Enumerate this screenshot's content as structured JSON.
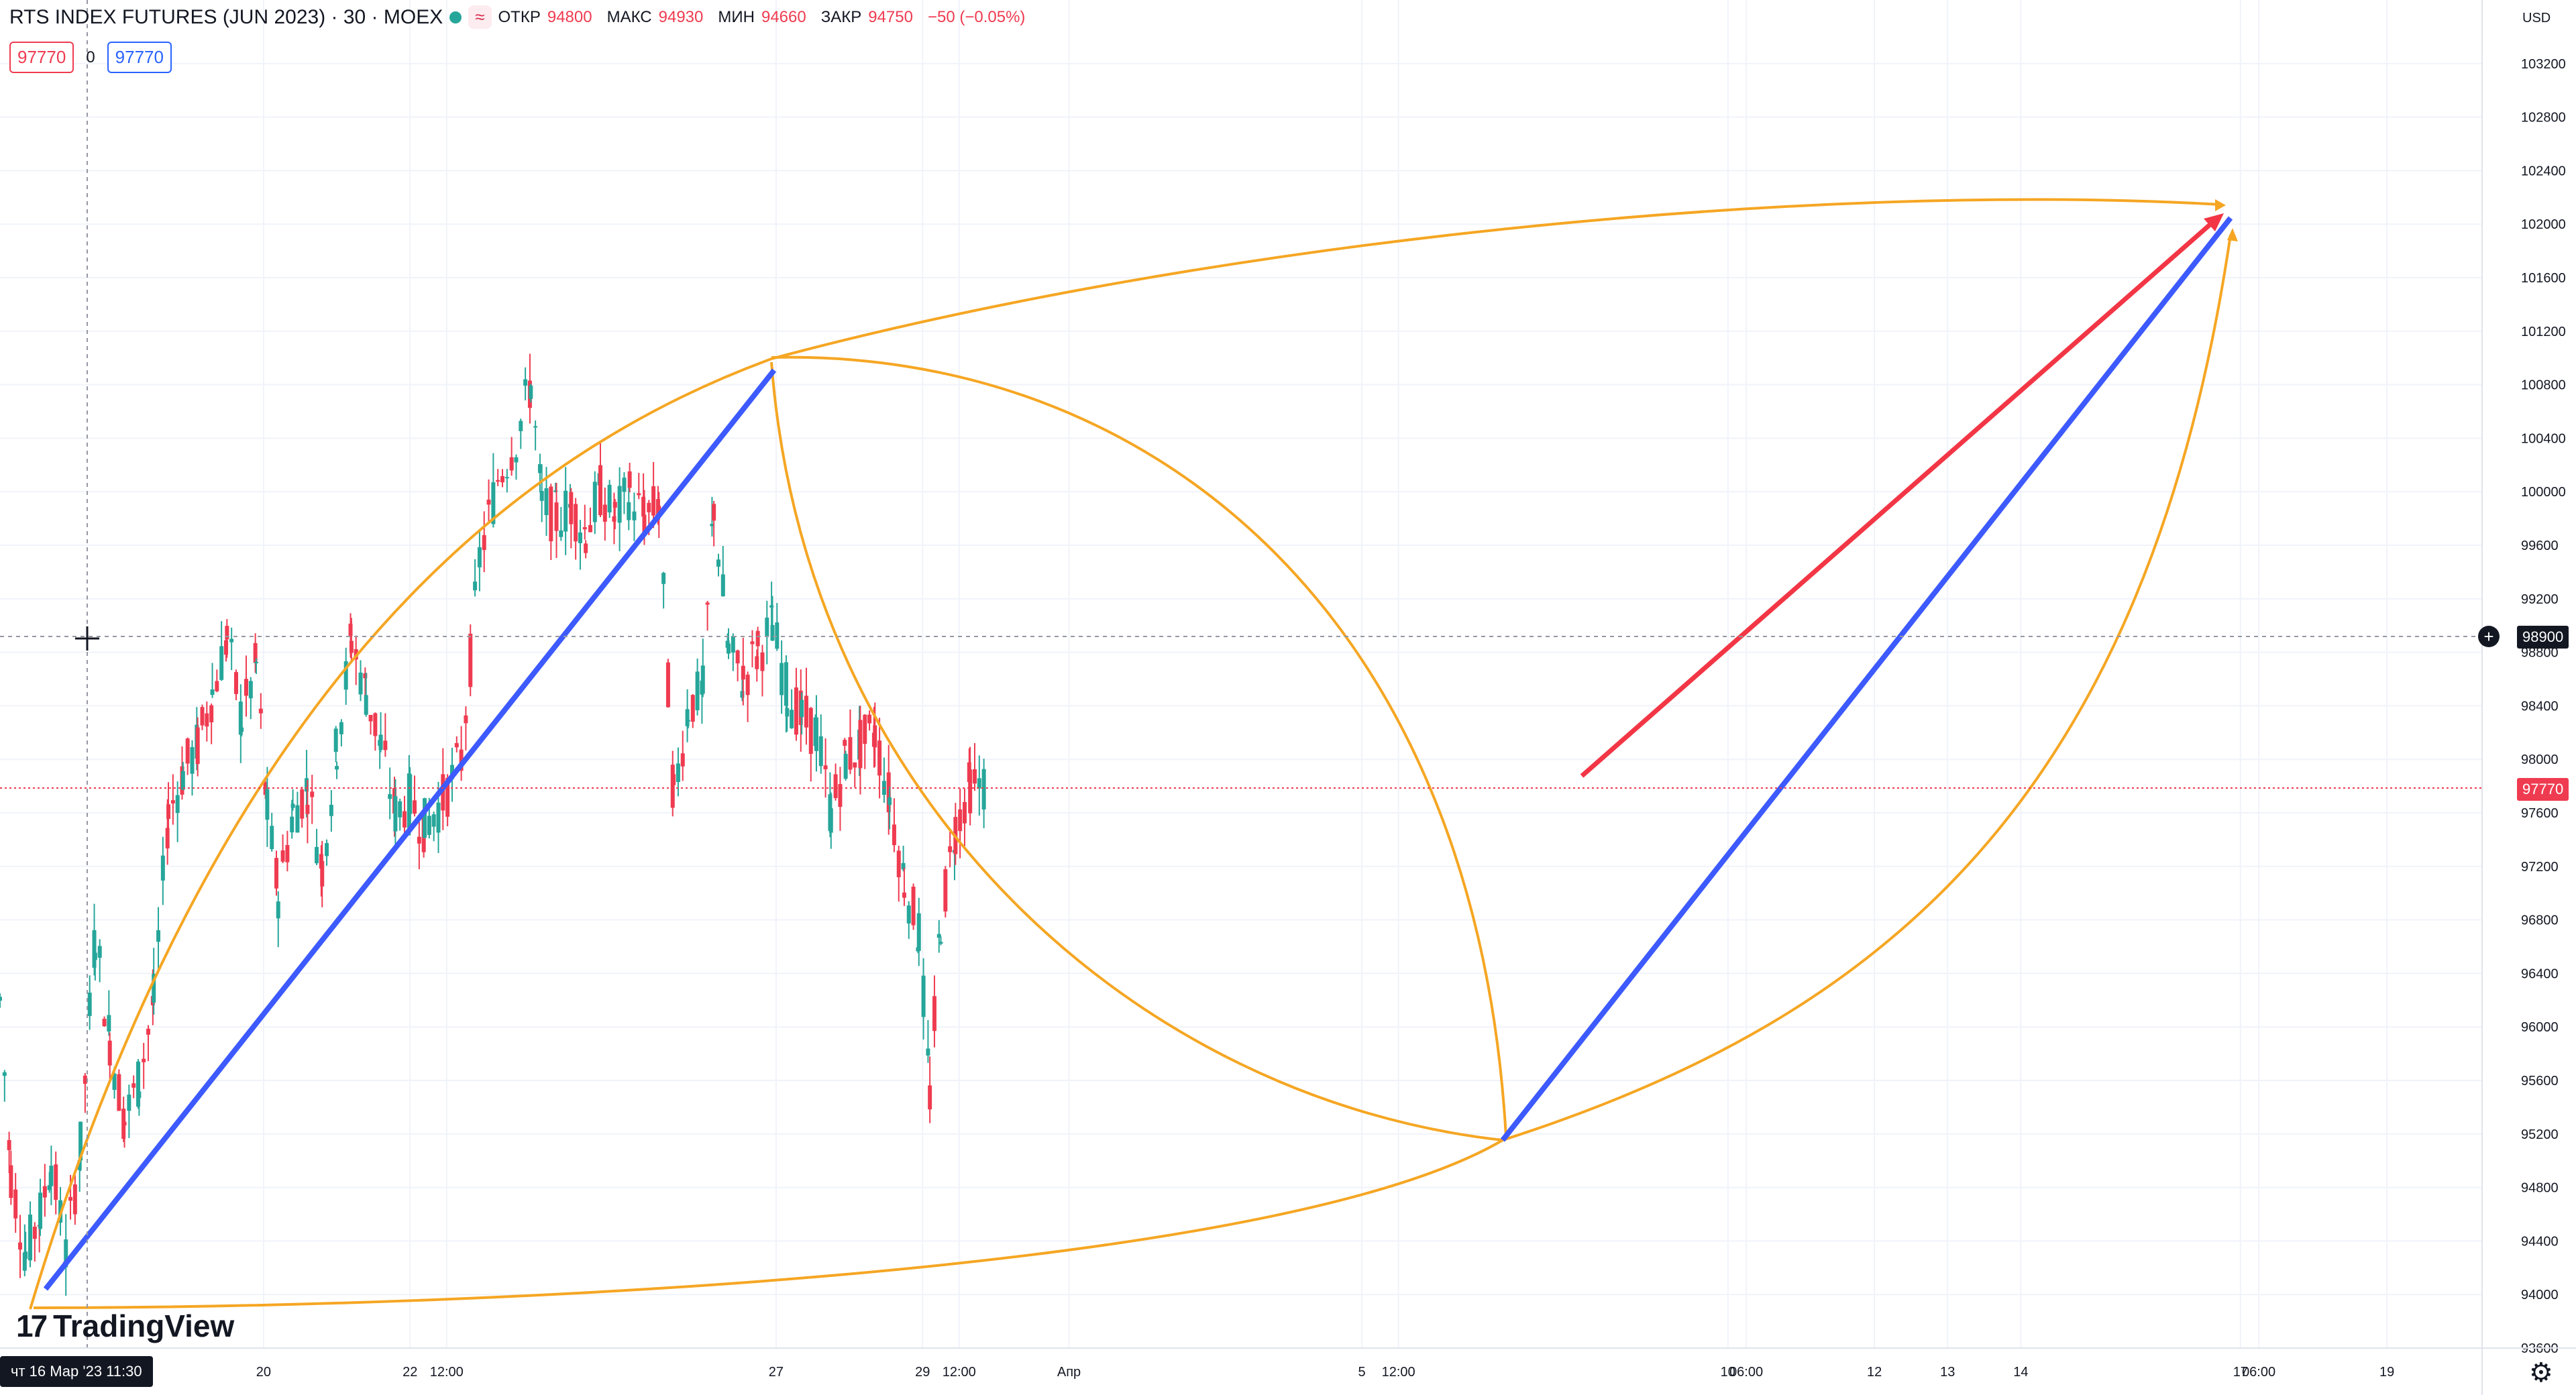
{
  "header": {
    "title": "RTS INDEX FUTURES (JUN 2023) · 30 · MOEX",
    "badge": "≈",
    "ohlc": [
      {
        "label": "ОТКР",
        "value": "94800"
      },
      {
        "label": "МАКС",
        "value": "94930"
      },
      {
        "label": "МИН",
        "value": "94660"
      },
      {
        "label": "ЗАКР",
        "value": "94750"
      }
    ],
    "change": "−50 (−0.05%)",
    "bid": "97770",
    "spread": "0",
    "ask": "97770"
  },
  "currency": "USD",
  "brand": "TradingView",
  "settings_icon": "gear-icon",
  "colors": {
    "up": "#26a69a",
    "down": "#ef3b50",
    "trend_blue": "#3d5afe",
    "arrow_red": "#f23645",
    "arc_orange": "#f5a623",
    "grid": "#f0f3fa"
  },
  "chart_data": {
    "type": "candlestick",
    "ylim": [
      93600,
      103600
    ],
    "y_ticks": [
      93600,
      94000,
      94400,
      94800,
      95200,
      95600,
      96000,
      96400,
      96800,
      97200,
      97600,
      98000,
      98400,
      98800,
      99200,
      99600,
      100000,
      100400,
      100800,
      101200,
      101600,
      102000,
      102400,
      102800,
      103200
    ],
    "x_ticks": [
      {
        "label": "20",
        "x": 20.0
      },
      {
        "label": "22",
        "x": 22.0
      },
      {
        "label": "12:00",
        "x": 22.5
      },
      {
        "label": "27",
        "x": 27.0
      },
      {
        "label": "29",
        "x": 29.0
      },
      {
        "label": "12:00",
        "x": 29.5
      },
      {
        "label": "Апр",
        "x": 31.0
      },
      {
        "label": "5",
        "x": 35.0
      },
      {
        "label": "12:00",
        "x": 35.5
      },
      {
        "label": "10",
        "x": 40.0
      },
      {
        "label": "06:00",
        "x": 40.25
      },
      {
        "label": "12",
        "x": 42.0
      },
      {
        "label": "13",
        "x": 43.0
      },
      {
        "label": "14",
        "x": 44.0
      },
      {
        "label": "17",
        "x": 47.0
      },
      {
        "label": "06:00",
        "x": 47.25
      },
      {
        "label": "19",
        "x": 49.0
      }
    ],
    "x_range": [
      16.4,
      50.3
    ],
    "cursor_date": "чт 16 Мар '23  11:30",
    "cursor_price": "98900",
    "last_price": "97770",
    "series": [
      {
        "name": "price",
        "points": [
          [
            16.4,
            96200
          ],
          [
            16.55,
            94900
          ],
          [
            16.75,
            94300
          ],
          [
            16.95,
            94600
          ],
          [
            17.1,
            95000
          ],
          [
            17.3,
            94300
          ],
          [
            17.5,
            95100
          ],
          [
            17.7,
            96700
          ],
          [
            17.9,
            95900
          ],
          [
            18.1,
            95300
          ],
          [
            18.3,
            95600
          ],
          [
            18.5,
            96200
          ],
          [
            18.7,
            97600
          ],
          [
            18.9,
            97900
          ],
          [
            19.1,
            98100
          ],
          [
            19.3,
            98500
          ],
          [
            19.5,
            98900
          ],
          [
            19.7,
            98300
          ],
          [
            19.9,
            98700
          ],
          [
            20.05,
            97600
          ],
          [
            20.2,
            97000
          ],
          [
            20.4,
            97600
          ],
          [
            20.6,
            97800
          ],
          [
            20.8,
            97200
          ],
          [
            21.0,
            98100
          ],
          [
            21.2,
            98900
          ],
          [
            21.4,
            98500
          ],
          [
            21.6,
            98100
          ],
          [
            21.8,
            97600
          ],
          [
            22.0,
            97700
          ],
          [
            22.2,
            97500
          ],
          [
            22.45,
            97700
          ],
          [
            22.7,
            98000
          ],
          [
            22.95,
            99500
          ],
          [
            23.2,
            100100
          ],
          [
            23.45,
            100400
          ],
          [
            23.65,
            100800
          ],
          [
            23.8,
            99900
          ],
          [
            24.0,
            99800
          ],
          [
            24.2,
            99900
          ],
          [
            24.4,
            99700
          ],
          [
            24.6,
            100000
          ],
          [
            24.8,
            99800
          ],
          [
            25.0,
            100000
          ],
          [
            25.2,
            99800
          ],
          [
            25.4,
            99900
          ],
          [
            25.6,
            97700
          ],
          [
            25.8,
            98400
          ],
          [
            26.0,
            98500
          ],
          [
            26.15,
            99900
          ],
          [
            26.35,
            98800
          ],
          [
            26.55,
            98600
          ],
          [
            26.75,
            98800
          ],
          [
            26.95,
            99000
          ],
          [
            27.15,
            98500
          ],
          [
            27.35,
            98300
          ],
          [
            27.55,
            98200
          ],
          [
            27.75,
            97600
          ],
          [
            27.95,
            98000
          ],
          [
            28.15,
            98100
          ],
          [
            28.35,
            98200
          ],
          [
            28.55,
            97700
          ],
          [
            28.75,
            97100
          ],
          [
            28.95,
            96700
          ],
          [
            29.1,
            95500
          ],
          [
            29.25,
            96800
          ],
          [
            29.45,
            97500
          ],
          [
            29.65,
            97800
          ],
          [
            29.85,
            97800
          ]
        ]
      }
    ]
  }
}
